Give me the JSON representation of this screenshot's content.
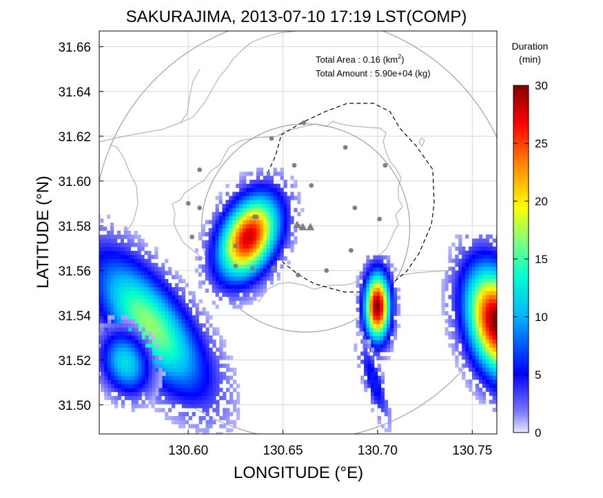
{
  "chart_data": {
    "type": "heatmap",
    "title": "SAKURAJIMA, 2013-07-10 17:19 LST(COMP)",
    "xlabel": "LONGITUDE (°E)",
    "ylabel": "LATITUDE (°N)",
    "xlim": [
      130.553,
      130.763
    ],
    "ylim": [
      31.487,
      31.667
    ],
    "xticks": [
      130.6,
      130.65,
      130.7,
      130.75
    ],
    "xtick_labels": [
      "130.60",
      "130.65",
      "130.70",
      "130.75"
    ],
    "yticks": [
      31.5,
      31.52,
      31.54,
      31.56,
      31.58,
      31.6,
      31.62,
      31.64,
      31.66
    ],
    "ytick_labels": [
      "31.50",
      "31.52",
      "31.54",
      "31.56",
      "31.58",
      "31.60",
      "31.62",
      "31.64",
      "31.66"
    ],
    "grid": true,
    "annotations": {
      "area_label": "Total Area   : 0.16 (km",
      "area_sup": "2",
      "area_close": ")",
      "amount_label": "Total Amount : 5.90e+04 (kg)"
    },
    "colorbar": {
      "title_line1": "Duration",
      "title_line2": "(min)",
      "range": [
        0,
        30
      ],
      "ticks": [
        0,
        5,
        10,
        15,
        20,
        25,
        30
      ],
      "colormap": "jet",
      "low_color": "#e8e8ff"
    },
    "range_circles": [
      {
        "center": [
          130.662,
          31.579
        ],
        "radius_deg_lat": 0.0465
      },
      {
        "center": [
          130.662,
          31.579
        ],
        "radius_deg_lat": 0.0945
      }
    ],
    "stations": [
      [
        130.644,
        31.619
      ],
      [
        130.606,
        31.605
      ],
      [
        130.6,
        31.59
      ],
      [
        130.606,
        31.588
      ],
      [
        130.602,
        31.575
      ],
      [
        130.625,
        31.571
      ],
      [
        130.636,
        31.584
      ],
      [
        130.635,
        31.584
      ],
      [
        130.656,
        31.607
      ],
      [
        130.665,
        31.598
      ],
      [
        130.683,
        31.615
      ],
      [
        130.704,
        31.607
      ],
      [
        130.661,
        31.626
      ],
      [
        130.688,
        31.588
      ],
      [
        130.701,
        31.583
      ],
      [
        130.686,
        31.569
      ],
      [
        130.673,
        31.56
      ],
      [
        130.658,
        31.558
      ],
      [
        130.645,
        31.561
      ],
      [
        130.625,
        31.562
      ],
      [
        130.634,
        31.561
      ]
    ],
    "volcano_vents": [
      [
        130.6575,
        31.5805
      ],
      [
        130.6605,
        31.5795
      ],
      [
        130.6645,
        31.5795
      ]
    ],
    "echo_cells": [
      {
        "name": "central",
        "lon": 130.631,
        "lat": 31.574,
        "sx": 0.009,
        "sy": 0.0135,
        "rot": -0.6,
        "peak": 28
      },
      {
        "name": "west-band",
        "lon": 130.579,
        "lat": 31.535,
        "sx": 0.011,
        "sy": 0.026,
        "rot": 0.75,
        "peak": 17
      },
      {
        "name": "west-band-tail",
        "lon": 130.566,
        "lat": 31.518,
        "sx": 0.008,
        "sy": 0.01,
        "rot": 0.6,
        "peak": 12
      },
      {
        "name": "east-small",
        "lon": 130.699,
        "lat": 31.543,
        "sx": 0.0045,
        "sy": 0.01,
        "rot": 0.0,
        "peak": 30
      },
      {
        "name": "east-edge",
        "lon": 130.762,
        "lat": 31.536,
        "sx": 0.01,
        "sy": 0.017,
        "rot": 0.3,
        "peak": 30
      },
      {
        "name": "south-streak",
        "lon": 130.697,
        "lat": 31.51,
        "sx": 0.003,
        "sy": 0.012,
        "rot": 0.35,
        "peak": 6
      }
    ]
  }
}
